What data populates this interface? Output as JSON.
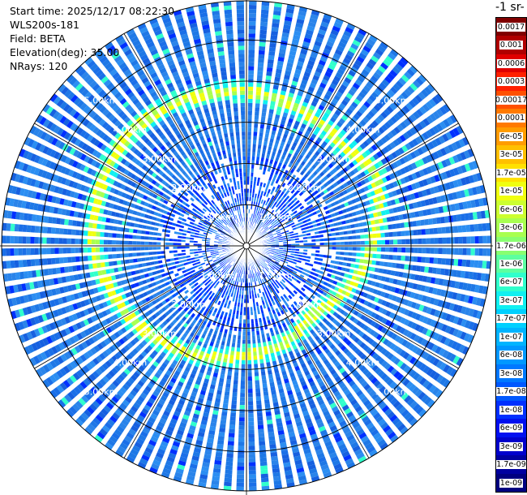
{
  "info": {
    "start_time": "Start time: 2025/12/17 08:22:30",
    "instrument": "WLS200s-181",
    "field": "Field: BETA",
    "elevation": "Elevation(deg): 35.00",
    "nrays": "NRays: 120"
  },
  "colorbar": {
    "unit_label": "-1 sr-",
    "ticks": [
      "0.0017",
      "0.001",
      "0.0006",
      "0.0003",
      "0.00017",
      "0.0001",
      "6e-05",
      "3e-05",
      "1.7e-05",
      "1e-05",
      "6e-06",
      "3e-06",
      "1.7e-06",
      "1e-06",
      "6e-07",
      "3e-07",
      "1.7e-07",
      "1e-07",
      "6e-08",
      "3e-08",
      "1.7e-08",
      "1e-08",
      "6e-09",
      "3e-09",
      "1.7e-09",
      "1e-09"
    ],
    "colors": [
      "#800000",
      "#b00000",
      "#e00000",
      "#ff2000",
      "#ff5000",
      "#ff7a00",
      "#ff9c00",
      "#ffc000",
      "#ffe100",
      "#f0ff10",
      "#ccff30",
      "#a8ff50",
      "#88ff70",
      "#5cffa0",
      "#30ffcc",
      "#10f0f0",
      "#00d0ff",
      "#00b4ff",
      "#0098ff",
      "#0078ff",
      "#0058ff",
      "#0030ff",
      "#0010f0",
      "#0000cc",
      "#0000a0",
      "#000080"
    ],
    "label_colors": [
      "#ffffff",
      "#ffffff",
      "#ffffff",
      "#ffffff",
      "#ffffff",
      "#000000",
      "#000000",
      "#000000",
      "#000000",
      "#000000",
      "#000000",
      "#000000",
      "#000000",
      "#000000",
      "#000000",
      "#000000",
      "#000000",
      "#000000",
      "#000000",
      "#000000",
      "#000000",
      "#ffffff",
      "#ffffff",
      "#ffffff",
      "#ffffff",
      "#ffffff"
    ]
  },
  "chart_data": {
    "type": "heatmap",
    "projection": "polar-ppi",
    "field": "BETA",
    "elevation_deg": 35.0,
    "n_rays": 120,
    "range_rings_km": [
      1,
      2,
      3,
      4,
      5
    ],
    "range_ring_labels": [
      "1.00km",
      "2.00km",
      "3.00km",
      "4.00km",
      "5.00km"
    ],
    "max_range_km": 5.95,
    "ring_feature": {
      "description_values": "enhanced backscatter band",
      "radius_km_by_azimuth_deg": [
        [
          0,
          3.75
        ],
        [
          45,
          3.35
        ],
        [
          60,
          3.6
        ],
        [
          90,
          3.05
        ],
        [
          135,
          2.3
        ],
        [
          160,
          2.55
        ],
        [
          180,
          2.65
        ],
        [
          225,
          3.15
        ],
        [
          270,
          3.7
        ],
        [
          315,
          3.95
        ],
        [
          360,
          3.75
        ]
      ],
      "peak_value": "1e-05",
      "background_value": "3e-08"
    },
    "color_scale": "log",
    "value_range": [
      "1e-09",
      "0.0017"
    ]
  }
}
